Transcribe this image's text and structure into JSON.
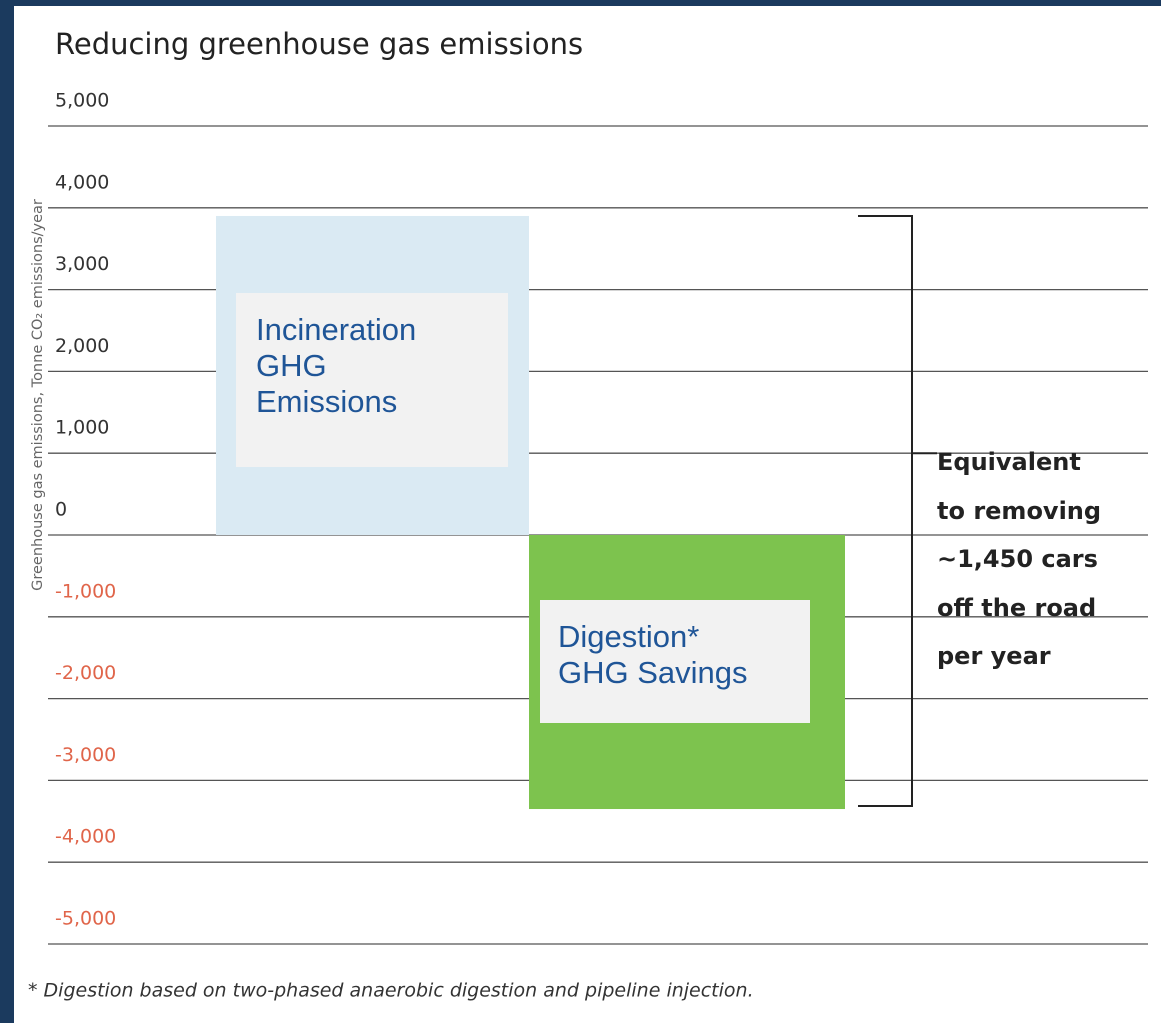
{
  "chart_data": {
    "type": "bar",
    "title": "Reducing greenhouse gas emissions",
    "y_label": "Greenhouse gas emissions, Tonne CO₂ emissions/year",
    "categories": [
      "Incineration GHG Emissions",
      "Digestion* GHG Savings"
    ],
    "values": [
      3900,
      -3350
    ],
    "colors": [
      "#daeaf3",
      "#7dc34e"
    ],
    "ylim": [
      -5000,
      5000
    ],
    "yticks": [
      {
        "value": 5000,
        "label": "5,000"
      },
      {
        "value": 4000,
        "label": "4,000"
      },
      {
        "value": 3000,
        "label": "3,000"
      },
      {
        "value": 2000,
        "label": "2,000"
      },
      {
        "value": 1000,
        "label": "1,000"
      },
      0,
      {
        "value": -1000,
        "label": "-1,000"
      },
      {
        "value": -2000,
        "label": "-2,000"
      },
      {
        "value": -3000,
        "label": "-3,000"
      },
      {
        "value": -4000,
        "label": "-4,000"
      },
      {
        "value": -5000,
        "label": "-5,000"
      }
    ],
    "tick_color": "#333333",
    "negative_tick_color": "#e0654a",
    "grid": true,
    "annotation": [
      "Equivalent",
      "to removing",
      "~1,450 cars",
      "off the road",
      "per year"
    ],
    "footnote": "* Digestion based on two-phased anaerobic digestion and pipeline injection."
  }
}
